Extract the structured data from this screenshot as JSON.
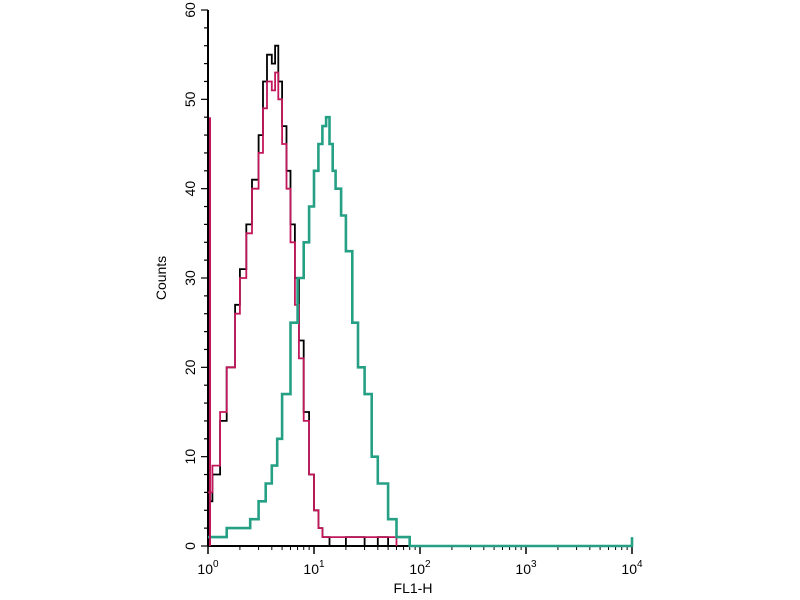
{
  "chart_data": {
    "type": "line",
    "title": "",
    "xlabel": "FL1-H",
    "ylabel": "Counts",
    "x_scale": "log",
    "xlim": [
      1,
      10000
    ],
    "ylim": [
      0,
      60
    ],
    "x_ticks": [
      {
        "base": "10",
        "exp": "0",
        "value": 1
      },
      {
        "base": "10",
        "exp": "1",
        "value": 10
      },
      {
        "base": "10",
        "exp": "2",
        "value": 100
      },
      {
        "base": "10",
        "exp": "3",
        "value": 1000
      },
      {
        "base": "10",
        "exp": "4",
        "value": 10000
      }
    ],
    "y_ticks": [
      0,
      10,
      20,
      30,
      40,
      50,
      60
    ],
    "grid": false,
    "legend": "none",
    "series": [
      {
        "color": "#000000",
        "x": [
          1.0,
          1.1,
          1.3,
          1.5,
          1.8,
          2.0,
          2.3,
          2.6,
          3.0,
          3.3,
          3.6,
          4.0,
          4.3,
          4.6,
          5.0,
          5.5,
          6.0,
          6.6,
          7.2,
          8.0,
          9.0,
          10.0,
          11.0,
          12.0,
          14.0,
          17.0,
          20.0,
          30.0,
          40.0,
          50.0,
          60.0
        ],
        "y": [
          5,
          8,
          14,
          20,
          27,
          31,
          36,
          41,
          46,
          52,
          55,
          54,
          56,
          52,
          47,
          42,
          36,
          30,
          23,
          15,
          8,
          4,
          2,
          1,
          0,
          0,
          1,
          0,
          1,
          0,
          0
        ]
      },
      {
        "color": "#c2185b",
        "x": [
          1.0,
          1.1,
          1.3,
          1.5,
          1.8,
          2.0,
          2.3,
          2.6,
          3.0,
          3.3,
          3.6,
          4.0,
          4.3,
          4.6,
          5.0,
          5.5,
          6.0,
          6.6,
          7.2,
          8.0,
          9.0,
          10.0,
          11.0,
          12.0,
          14.0,
          17.0,
          20.0,
          30.0,
          40.0,
          50.0,
          60.0
        ],
        "y": [
          6,
          9,
          15,
          20,
          26,
          30,
          35,
          40,
          44,
          49,
          52,
          51,
          53,
          50,
          45,
          40,
          34,
          27,
          21,
          14,
          8,
          4,
          2,
          1,
          1,
          1,
          1,
          1,
          1,
          1,
          0
        ]
      },
      {
        "color": "#26a085",
        "x": [
          1.0,
          1.2,
          1.5,
          2.0,
          2.5,
          3.0,
          3.5,
          4.0,
          4.5,
          5.0,
          6.0,
          7.0,
          8.0,
          9.0,
          10.0,
          11.0,
          12.0,
          13.0,
          14.0,
          15.0,
          16.0,
          18.0,
          20.0,
          23.0,
          26.0,
          30.0,
          35.0,
          40.0,
          50.0,
          60.0,
          70.0,
          80.0,
          100.0,
          200.0,
          500.0,
          1000.0,
          3000.0,
          10000.0
        ],
        "y": [
          1,
          1,
          2,
          2,
          3,
          5,
          7,
          9,
          12,
          17,
          25,
          30,
          34,
          38,
          42,
          45,
          47,
          48,
          45,
          42,
          40,
          37,
          33,
          25,
          20,
          17,
          10,
          7,
          3,
          1,
          1,
          0,
          0,
          0,
          0,
          0,
          0,
          1
        ]
      }
    ]
  }
}
